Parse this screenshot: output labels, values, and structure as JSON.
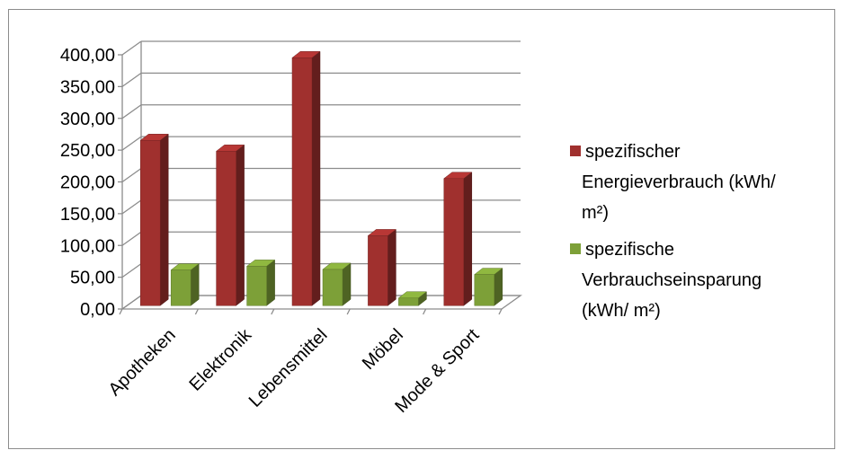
{
  "chart_data": {
    "type": "bar",
    "title": "",
    "xlabel": "",
    "ylabel": "",
    "categories": [
      "Apotheken",
      "Elektronik",
      "Lebensmittel",
      "Möbel",
      "Mode & Sport"
    ],
    "series": [
      {
        "name": "spezifischer Energieverbrauch (kWh/ m²)",
        "values": [
          260,
          243,
          390,
          110,
          200
        ],
        "color": "#a0302e"
      },
      {
        "name": "spezifische Verbrauchseinsparung (kWh/ m²)",
        "values": [
          56,
          62,
          57,
          12,
          49
        ],
        "color": "#7da038"
      }
    ],
    "ylim": [
      0,
      400
    ],
    "yticks": [
      "0,00",
      "50,00",
      "100,00",
      "150,00",
      "200,00",
      "250,00",
      "300,00",
      "350,00",
      "400,00"
    ],
    "legend_lines": [
      [
        "spezifischer",
        "Energieverbrauch (kWh/",
        "m²)"
      ],
      [
        "spezifische",
        "Verbrauchseinsparung",
        "(kWh/ m²)"
      ]
    ],
    "grid": true,
    "legend_position": "right",
    "style": "3d"
  }
}
